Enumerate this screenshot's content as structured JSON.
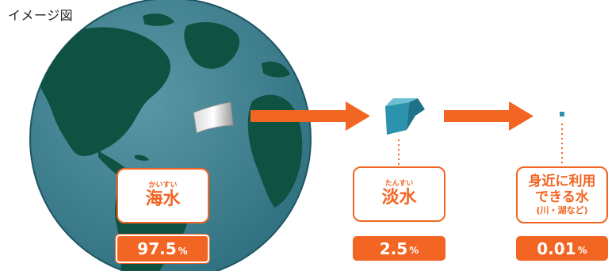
{
  "caption": "イメージ図",
  "stages": [
    {
      "ruby": "かいすい",
      "label": "海水",
      "value": "97.5",
      "unit": "%"
    },
    {
      "ruby": "たんすい",
      "label": "淡水",
      "value": "2.5",
      "unit": "%"
    },
    {
      "label_line1": "身近に利用",
      "label_line2": "できる水",
      "note": "(川・湖など)",
      "value": "0.01",
      "unit": "%"
    }
  ],
  "colors": {
    "accent": "#f26522",
    "ocean": "#3d7f8f",
    "land": "#0f5241",
    "freshwater": "#2b93ad"
  }
}
